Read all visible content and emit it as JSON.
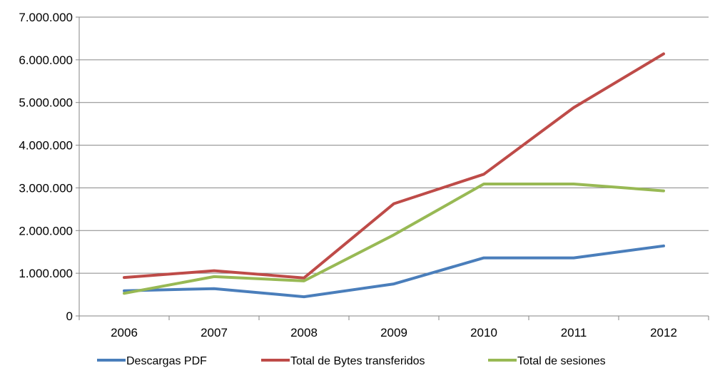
{
  "chart_data": {
    "type": "line",
    "title": "",
    "xlabel": "",
    "ylabel": "",
    "categories": [
      "2006",
      "2007",
      "2008",
      "2009",
      "2010",
      "2011",
      "2012"
    ],
    "ylim": [
      0,
      7000000
    ],
    "yticks": [
      0,
      1000000,
      2000000,
      3000000,
      4000000,
      5000000,
      6000000,
      7000000
    ],
    "ytick_labels": [
      "0",
      "1.000.000",
      "2.000.000",
      "3.000.000",
      "4.000.000",
      "5.000.000",
      "6.000.000",
      "7.000.000"
    ],
    "grid": "horizontal",
    "legend_position": "bottom",
    "series": [
      {
        "name": "Descargas PDF",
        "color": "#4a7ebb",
        "values": [
          590000,
          640000,
          450000,
          750000,
          1360000,
          1360000,
          1640000
        ]
      },
      {
        "name": "Total de Bytes transferidos",
        "color": "#be4b48",
        "values": [
          900000,
          1060000,
          890000,
          2630000,
          3320000,
          4880000,
          6140000
        ]
      },
      {
        "name": "Total de sesiones",
        "color": "#98b954",
        "values": [
          530000,
          920000,
          820000,
          1900000,
          3090000,
          3090000,
          2930000
        ]
      }
    ]
  }
}
